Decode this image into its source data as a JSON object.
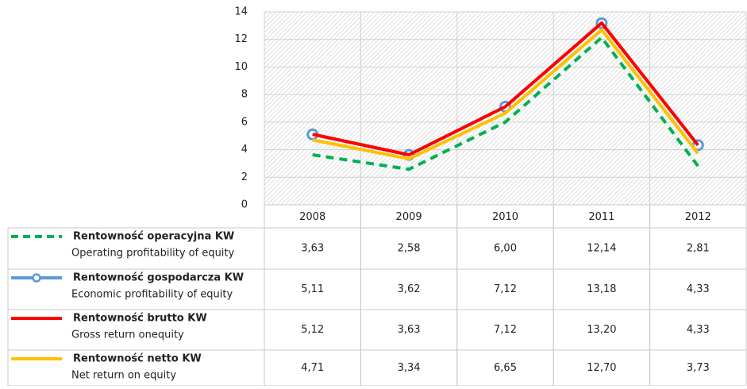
{
  "chart_data": {
    "type": "line",
    "categories": [
      "2008",
      "2009",
      "2010",
      "2011",
      "2012"
    ],
    "ylim": [
      0,
      14
    ],
    "yticks": [
      0,
      2,
      4,
      6,
      8,
      10,
      12,
      14
    ],
    "grid": true,
    "series": [
      {
        "name": "Rentowność operacyjna KW",
        "description": "Operating profitability of equity",
        "color": "#00b050",
        "dashed": true,
        "values": [
          3.63,
          2.58,
          6.0,
          12.14,
          2.81
        ],
        "value_labels": [
          "3,63",
          "2,58",
          "6,00",
          "12,14",
          "2,81"
        ]
      },
      {
        "name": "Rentowność gospodarcza KW",
        "description": "Economic profitability of equity",
        "color": "#5b9bd5",
        "markers": true,
        "values": [
          5.11,
          3.62,
          7.12,
          13.18,
          4.33
        ],
        "value_labels": [
          "5,11",
          "3,62",
          "7,12",
          "13,18",
          "4,33"
        ]
      },
      {
        "name": "Rentowność brutto KW",
        "description": "Gross return onequity",
        "color": "#ff0000",
        "values": [
          5.12,
          3.63,
          7.12,
          13.2,
          4.33
        ],
        "value_labels": [
          "5,12",
          "3,63",
          "7,12",
          "13,20",
          "4,33"
        ]
      },
      {
        "name": "Rentowność netto KW",
        "description": "Net return on equity",
        "color": "#ffc000",
        "values": [
          4.71,
          3.34,
          6.65,
          12.7,
          3.73
        ],
        "value_labels": [
          "4,71",
          "3,34",
          "6,65",
          "12,70",
          "3,73"
        ]
      }
    ]
  }
}
